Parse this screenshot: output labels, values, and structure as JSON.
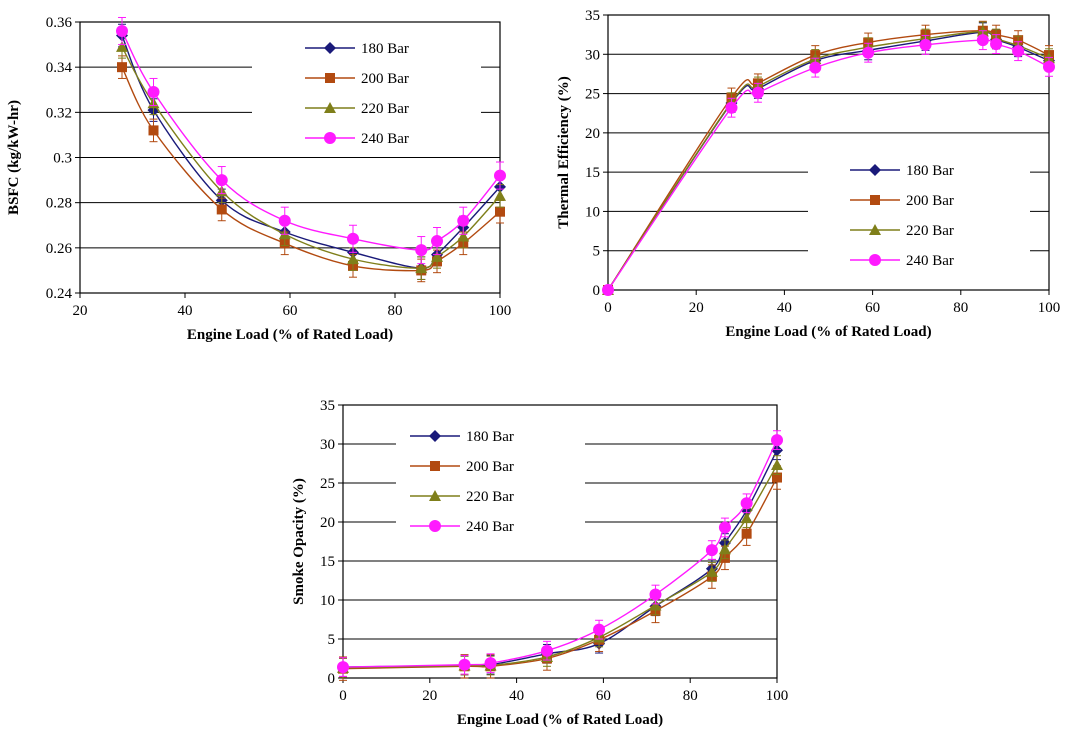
{
  "colors": {
    "180 Bar": "#1a1a7a",
    "200 Bar": "#b24a10",
    "220 Bar": "#7f7f1a",
    "240 Bar": "#ff1aff"
  },
  "markers": {
    "180 Bar": "diamond",
    "200 Bar": "square",
    "220 Bar": "triangle",
    "240 Bar": "circle"
  },
  "chart_data": [
    {
      "type": "line",
      "xlabel": "Engine Load (% of Rated Load)",
      "ylabel": "BSFC (kg/kW-hr)",
      "xlim": [
        20,
        100
      ],
      "ylim": [
        0.24,
        0.36
      ],
      "xticks": [
        20,
        40,
        60,
        80,
        100
      ],
      "yticks": [
        0.24,
        0.26,
        0.28,
        0.3,
        0.32,
        0.34,
        0.36
      ],
      "ytick_labels": [
        "0.24",
        "0.26",
        "0.28",
        "0.3",
        "0.32",
        "0.34",
        "0.36"
      ],
      "grid": "horizontal",
      "legend_position": "top-right",
      "x": [
        28,
        34,
        47,
        59,
        72,
        85,
        88,
        93,
        100
      ],
      "series": [
        {
          "name": "180 Bar",
          "values": [
            0.354,
            0.321,
            0.281,
            0.267,
            0.258,
            0.251,
            0.257,
            0.269,
            0.287
          ],
          "error": 0.005
        },
        {
          "name": "200 Bar",
          "values": [
            0.34,
            0.312,
            0.277,
            0.262,
            0.252,
            0.25,
            0.254,
            0.262,
            0.276
          ],
          "error": 0.005
        },
        {
          "name": "220 Bar",
          "values": [
            0.349,
            0.324,
            0.285,
            0.266,
            0.255,
            0.251,
            0.256,
            0.265,
            0.283
          ],
          "error": 0.005
        },
        {
          "name": "240 Bar",
          "values": [
            0.356,
            0.329,
            0.29,
            0.272,
            0.264,
            0.259,
            0.263,
            0.272,
            0.292
          ],
          "error": 0.006
        }
      ]
    },
    {
      "type": "line",
      "xlabel": "Engine Load (% of Rated Load)",
      "ylabel": "Thermal Efficiency (%)",
      "xlim": [
        0,
        100
      ],
      "ylim": [
        0,
        35
      ],
      "xticks": [
        0,
        20,
        40,
        60,
        80,
        100
      ],
      "yticks": [
        0,
        5,
        10,
        15,
        20,
        25,
        30,
        35
      ],
      "ytick_labels": [
        "0",
        "5",
        "10",
        "15",
        "20",
        "25",
        "30",
        "35"
      ],
      "grid": "horizontal",
      "legend_position": "bottom-right",
      "x": [
        0,
        28,
        34,
        47,
        59,
        72,
        85,
        88,
        93,
        100
      ],
      "series": [
        {
          "name": "180 Bar",
          "values": [
            0,
            23.8,
            25.6,
            29.2,
            30.5,
            31.7,
            32.8,
            31.9,
            30.9,
            29.2
          ],
          "error": 1.2
        },
        {
          "name": "200 Bar",
          "values": [
            0,
            24.5,
            26.3,
            29.9,
            31.5,
            32.5,
            33.0,
            32.5,
            31.8,
            29.9
          ],
          "error": 1.2
        },
        {
          "name": "220 Bar",
          "values": [
            0,
            23.9,
            25.9,
            29.4,
            30.9,
            32.0,
            32.9,
            32.0,
            31.1,
            29.5
          ],
          "error": 1.2
        },
        {
          "name": "240 Bar",
          "values": [
            0,
            23.2,
            25.1,
            28.3,
            30.2,
            31.2,
            31.8,
            31.3,
            30.4,
            28.4
          ],
          "error": 1.2
        }
      ]
    },
    {
      "type": "line",
      "xlabel": "Engine Load (% of Rated Load)",
      "ylabel": "Smoke Opacity (%)",
      "xlim": [
        0,
        100
      ],
      "ylim": [
        0,
        35
      ],
      "xticks": [
        0,
        20,
        40,
        60,
        80,
        100
      ],
      "yticks": [
        0,
        5,
        10,
        15,
        20,
        25,
        30,
        35
      ],
      "ytick_labels": [
        "0",
        "5",
        "10",
        "15",
        "20",
        "25",
        "30",
        "35"
      ],
      "grid": "horizontal",
      "legend_position": "top-left",
      "x": [
        0,
        28,
        34,
        47,
        59,
        72,
        85,
        88,
        93,
        100
      ],
      "series": [
        {
          "name": "180 Bar",
          "values": [
            1.4,
            1.6,
            1.7,
            3.1,
            4.4,
            9.2,
            14.0,
            17.3,
            21.5,
            29.2
          ],
          "error": 1.2
        },
        {
          "name": "200 Bar",
          "values": [
            1.2,
            1.5,
            1.5,
            2.5,
            4.9,
            8.6,
            13.0,
            15.4,
            18.5,
            25.7
          ],
          "error": 1.5
        },
        {
          "name": "220 Bar",
          "values": [
            1.3,
            1.6,
            1.6,
            2.7,
            5.2,
            9.3,
            13.6,
            16.5,
            20.5,
            27.3
          ],
          "error": 1.2
        },
        {
          "name": "240 Bar",
          "values": [
            1.4,
            1.7,
            1.9,
            3.5,
            6.2,
            10.7,
            16.4,
            19.3,
            22.4,
            30.5
          ],
          "error": 1.2
        }
      ]
    }
  ]
}
